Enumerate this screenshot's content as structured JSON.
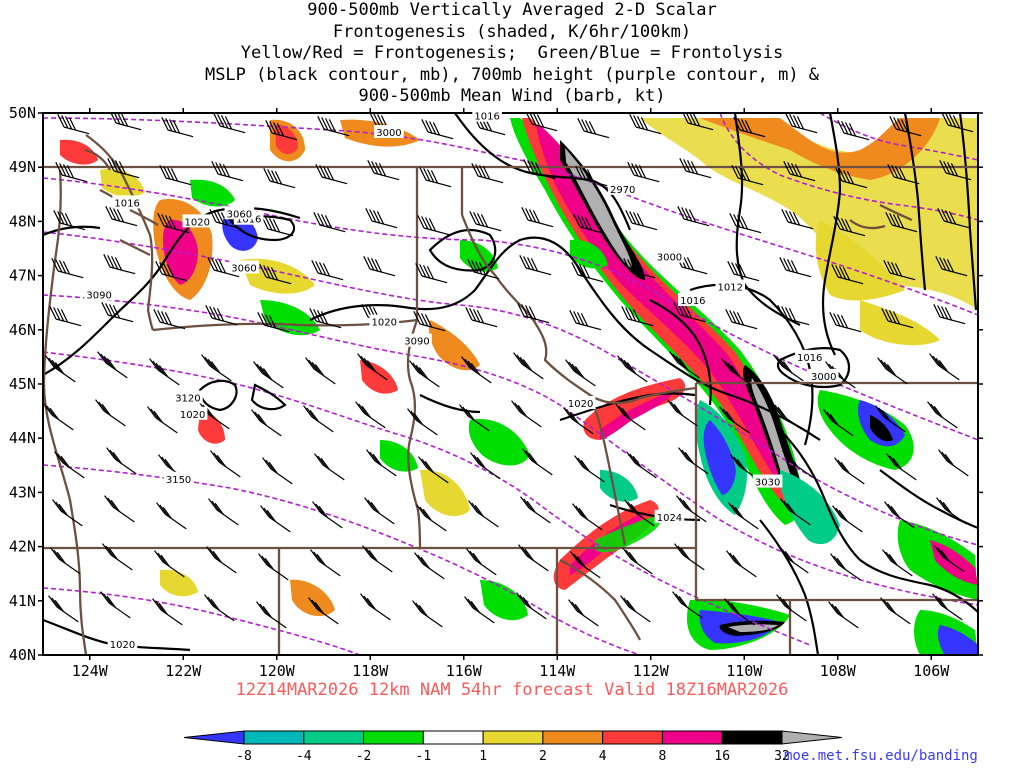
{
  "title": {
    "lines": [
      "900-500mb Vertically Averaged 2-D Scalar",
      "Frontogenesis (shaded, K/6hr/100km)",
      "Yellow/Red = Frontogenesis;  Green/Blue = Frontolysis",
      "MSLP (black contour, mb), 700mb height (purple contour, m) &",
      "900-500mb Mean Wind (barb, kt)"
    ]
  },
  "subtitle": "12Z14MAR2026 12km NAM 54hr forecast Valid 18Z16MAR2026",
  "source_url": "moe.met.fsu.edu/banding",
  "axes": {
    "lon_range": [
      -125,
      -105
    ],
    "lat_range": [
      40,
      50
    ],
    "lon_ticks": [
      {
        "value": -124,
        "label": "124W"
      },
      {
        "value": -122,
        "label": "122W"
      },
      {
        "value": -120,
        "label": "120W"
      },
      {
        "value": -118,
        "label": "118W"
      },
      {
        "value": -116,
        "label": "116W"
      },
      {
        "value": -114,
        "label": "114W"
      },
      {
        "value": -112,
        "label": "112W"
      },
      {
        "value": -110,
        "label": "110W"
      },
      {
        "value": -108,
        "label": "108W"
      },
      {
        "value": -106,
        "label": "106W"
      }
    ],
    "lat_ticks": [
      {
        "value": 50,
        "label": "50N"
      },
      {
        "value": 49,
        "label": "49N"
      },
      {
        "value": 48,
        "label": "48N"
      },
      {
        "value": 47,
        "label": "47N"
      },
      {
        "value": 46,
        "label": "46N"
      },
      {
        "value": 45,
        "label": "45N"
      },
      {
        "value": 44,
        "label": "44N"
      },
      {
        "value": 43,
        "label": "43N"
      },
      {
        "value": 42,
        "label": "42N"
      },
      {
        "value": 41,
        "label": "41N"
      },
      {
        "value": 40,
        "label": "40N"
      }
    ]
  },
  "colorbar": {
    "colors": [
      "#3535ff",
      "#00b8b8",
      "#00cc88",
      "#00dd00",
      "#ffffff",
      "#e6d830",
      "#ee8a1e",
      "#ff3a3a",
      "#ee0088",
      "#000000",
      "#b0b0b0"
    ],
    "labels": [
      "-8",
      "-4",
      "-2",
      "-1",
      "1",
      "2",
      "4",
      "8",
      "16",
      "32"
    ]
  },
  "colors": {
    "mslp_contour": "#000000",
    "height_contour": "#b21fd0",
    "borders": "#6e5040",
    "subtitle": "#ff5a5a",
    "url": "#3a3aff"
  },
  "mslp_labels": [
    {
      "text": "1016",
      "lon": -115.5,
      "lat": 49.95
    },
    {
      "text": "1016",
      "lon": -123.2,
      "lat": 48.35
    },
    {
      "text": "1020",
      "lon": -121.7,
      "lat": 48.0
    },
    {
      "text": "1016",
      "lon": -120.6,
      "lat": 48.05
    },
    {
      "text": "1020",
      "lon": -117.7,
      "lat": 46.15
    },
    {
      "text": "1020",
      "lon": -121.8,
      "lat": 44.45
    },
    {
      "text": "1012",
      "lon": -110.3,
      "lat": 46.8
    },
    {
      "text": "1016",
      "lon": -111.1,
      "lat": 46.55
    },
    {
      "text": "1016",
      "lon": -108.6,
      "lat": 45.5
    },
    {
      "text": "1020",
      "lon": -113.5,
      "lat": 44.65
    },
    {
      "text": "1024",
      "lon": -111.6,
      "lat": 42.55
    },
    {
      "text": "1020",
      "lon": -123.3,
      "lat": 40.2
    }
  ],
  "height_labels": [
    {
      "text": "3000",
      "lon": -117.6,
      "lat": 49.65
    },
    {
      "text": "2970",
      "lon": -112.6,
      "lat": 48.6
    },
    {
      "text": "3000",
      "lon": -111.6,
      "lat": 47.35
    },
    {
      "text": "3060",
      "lon": -120.8,
      "lat": 48.15
    },
    {
      "text": "3060",
      "lon": -120.7,
      "lat": 47.15
    },
    {
      "text": "3090",
      "lon": -123.8,
      "lat": 46.65
    },
    {
      "text": "3090",
      "lon": -117.0,
      "lat": 45.8
    },
    {
      "text": "3000",
      "lon": -108.3,
      "lat": 45.15
    },
    {
      "text": "3120",
      "lon": -121.9,
      "lat": 44.75
    },
    {
      "text": "3150",
      "lon": -122.1,
      "lat": 43.25
    },
    {
      "text": "3030",
      "lon": -109.5,
      "lat": 43.2
    }
  ]
}
